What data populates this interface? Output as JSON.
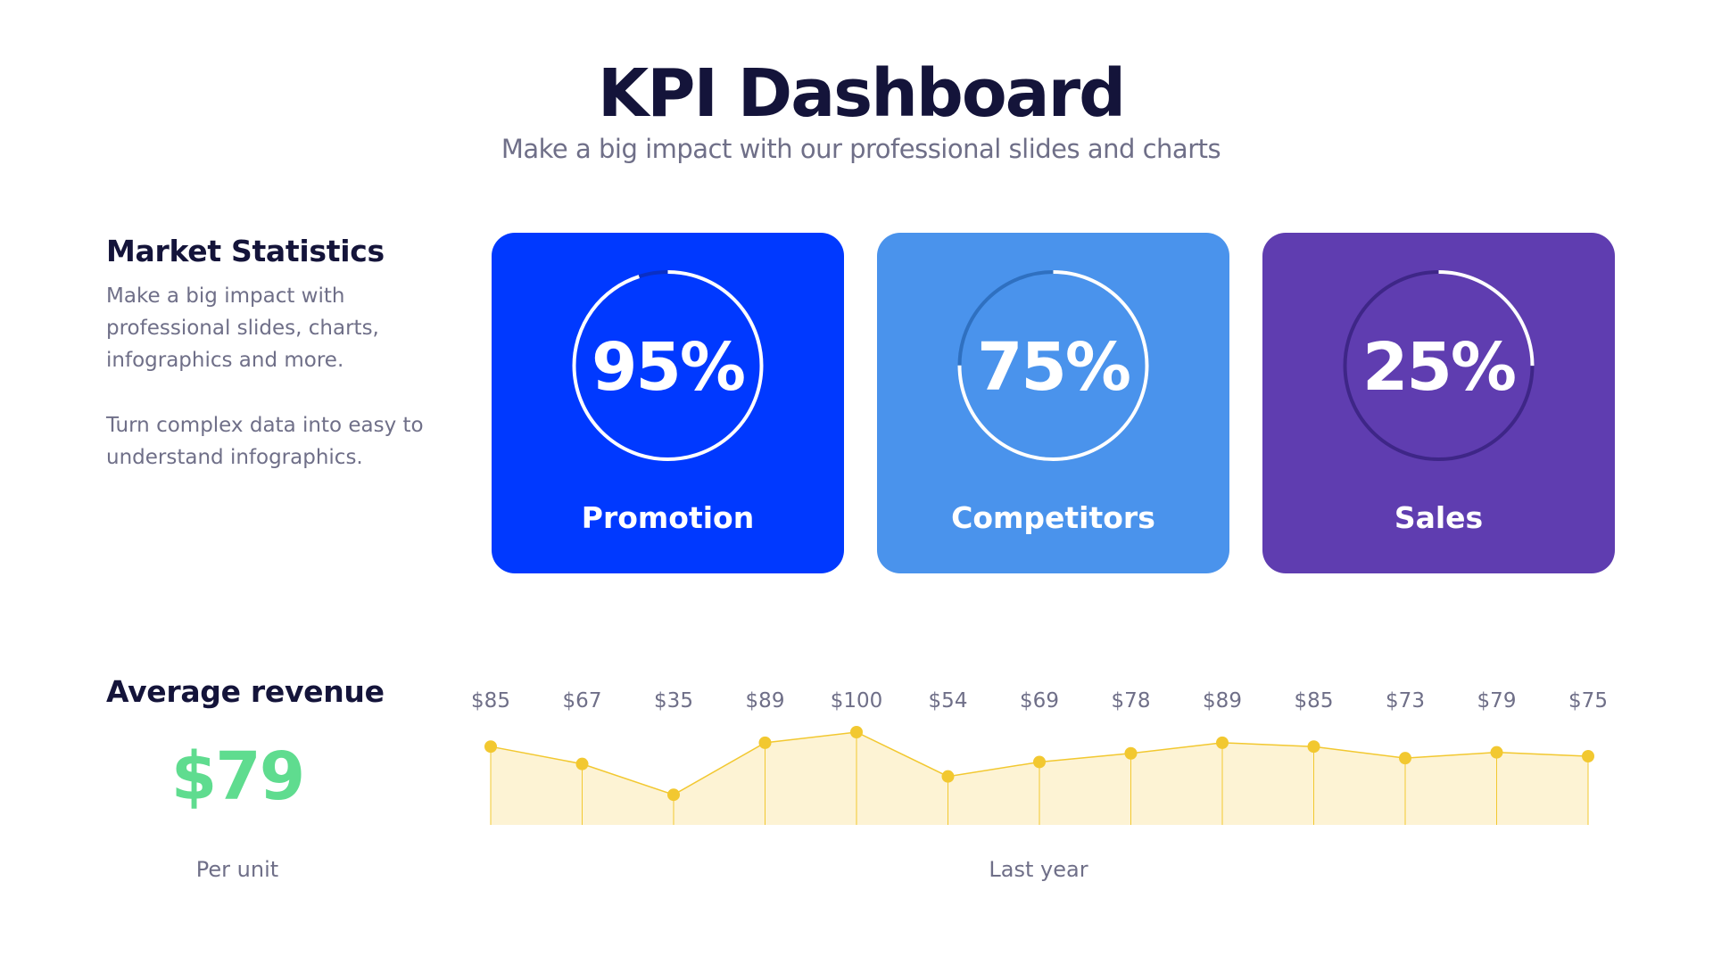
{
  "header": {
    "title": "KPI Dashboard",
    "subtitle": "Make a big impact with our professional slides and charts"
  },
  "market": {
    "heading": "Market Statistics",
    "paragraph1": "Make a big impact with professional slides, charts, infographics and more.",
    "paragraph2": "Turn complex data into easy to understand infographics."
  },
  "cards": [
    {
      "value": "95%",
      "percent": 95,
      "label": "Promotion",
      "color": "#0039ff",
      "track": "#0a2fc4"
    },
    {
      "value": "75%",
      "percent": 75,
      "label": "Competitors",
      "color": "#4a93ec",
      "track": "#2f70c0"
    },
    {
      "value": "25%",
      "percent": 25,
      "label": "Sales",
      "color": "#5f3db0",
      "track": "#3e2687"
    }
  ],
  "revenue": {
    "heading": "Average revenue",
    "value": "$79",
    "unit_label": "Per unit",
    "value_color": "#5fdc8f"
  },
  "chart_data": {
    "type": "area",
    "xlabel": "Last year",
    "values": [
      85,
      67,
      35,
      89,
      100,
      54,
      69,
      78,
      89,
      85,
      73,
      79,
      75
    ],
    "labels": [
      "$85",
      "$67",
      "$35",
      "$89",
      "$100",
      "$54",
      "$69",
      "$78",
      "$89",
      "$85",
      "$73",
      "$79",
      "$75"
    ],
    "line_color": "#f2c830",
    "fill_color": "#fdf3d4",
    "grid": false
  }
}
